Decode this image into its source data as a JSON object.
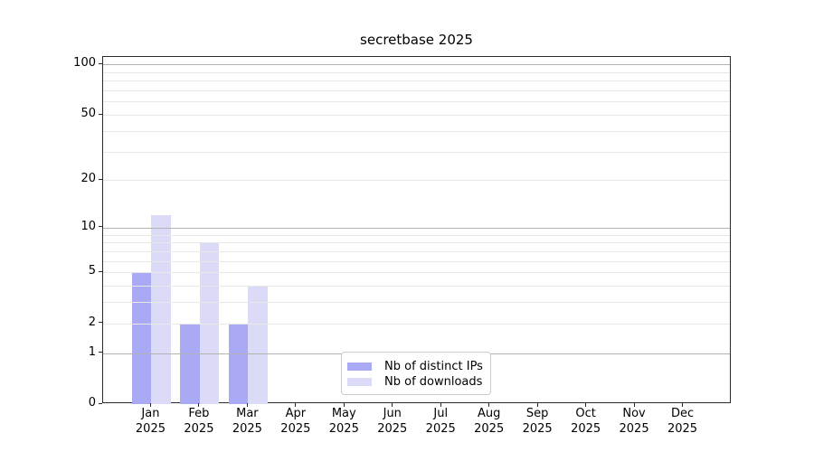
{
  "chart_data": {
    "type": "bar",
    "title": "secretbase 2025",
    "categories": [
      "Jan",
      "Feb",
      "Mar",
      "Apr",
      "May",
      "Jun",
      "Jul",
      "Aug",
      "Sep",
      "Oct",
      "Nov",
      "Dec"
    ],
    "category_year": "2025",
    "series": [
      {
        "name": "Nb of distinct IPs",
        "color": "#a9a9f4",
        "values": [
          5,
          2,
          2,
          0,
          0,
          0,
          0,
          0,
          0,
          0,
          0,
          0
        ]
      },
      {
        "name": "Nb of downloads",
        "color": "#dbdbf8",
        "values": [
          12,
          8,
          4,
          0,
          0,
          0,
          0,
          0,
          0,
          0,
          0,
          0
        ]
      }
    ],
    "xlabel": "",
    "ylabel": "",
    "yscale": "log1p",
    "ylim": [
      0,
      111
    ],
    "yticks": [
      0,
      1,
      2,
      5,
      10,
      20,
      50,
      100
    ],
    "grid": {
      "on": true,
      "major_values": [
        1,
        10,
        100
      ],
      "minor_values": [
        2,
        3,
        4,
        5,
        6,
        7,
        8,
        9,
        20,
        30,
        40,
        50,
        60,
        70,
        80,
        90
      ],
      "major_color": "#b2b2b2",
      "minor_color": "#e8e8e8"
    },
    "legend": {
      "position": "bottom-center"
    }
  }
}
